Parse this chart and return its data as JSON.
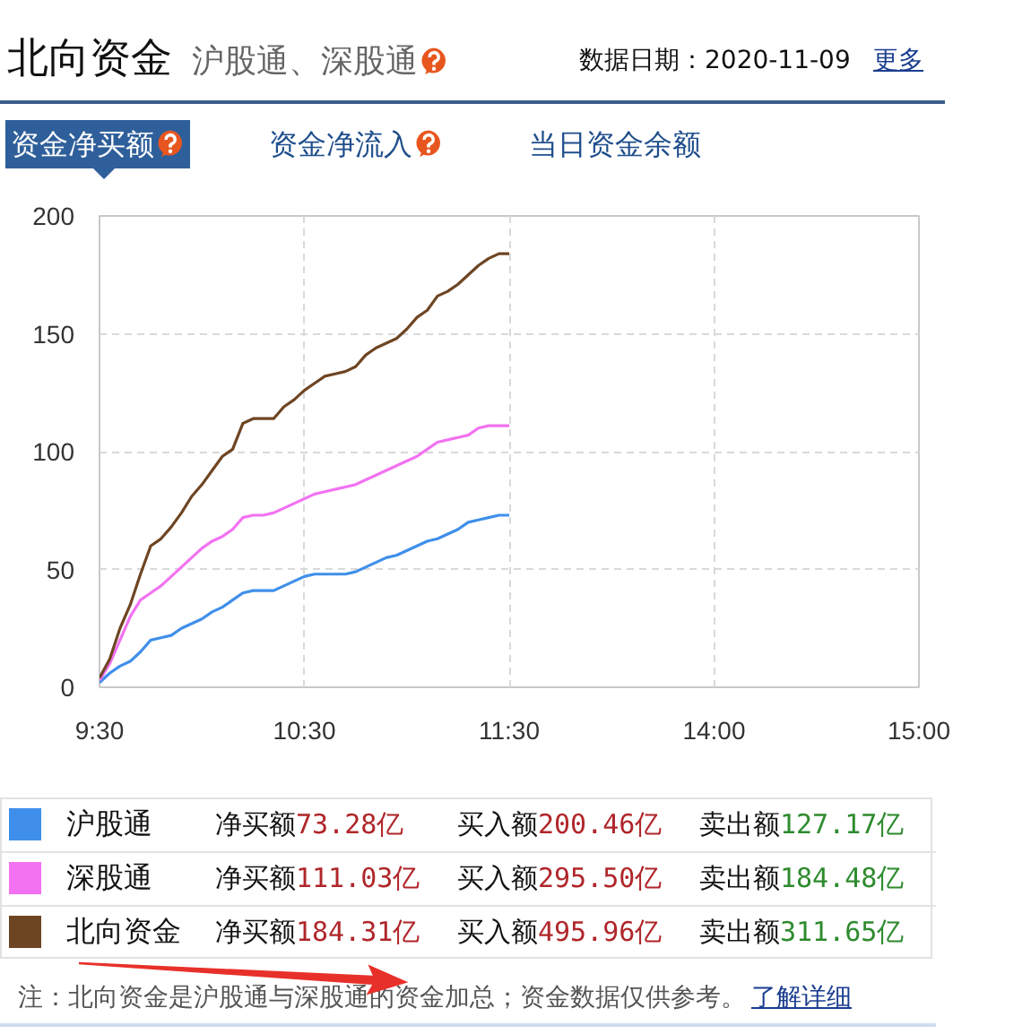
{
  "chart_data": {
    "type": "line",
    "title": "北向资金",
    "subtitle": "沪股通、深股通",
    "categories": [
      "9:30",
      null,
      null,
      null,
      null,
      null,
      null,
      null,
      null,
      null,
      null,
      null,
      null,
      null,
      null,
      null,
      null,
      null,
      null,
      null,
      "10:30",
      null,
      null,
      null,
      null,
      null,
      null,
      null,
      null,
      null,
      null,
      null,
      null,
      null,
      null,
      null,
      null,
      null,
      null,
      null,
      "11:30",
      null,
      null,
      null,
      null,
      null,
      null,
      null,
      null,
      null,
      null,
      null,
      null,
      null,
      null,
      null,
      null,
      null,
      null,
      null,
      "14:00",
      null,
      null,
      null,
      null,
      null,
      null,
      null,
      null,
      null,
      null,
      null,
      null,
      null,
      null,
      null,
      null,
      null,
      null,
      null,
      "15:00"
    ],
    "series": [
      {
        "name": "沪股通",
        "color": "#3f8fea",
        "values": [
          2,
          6,
          9,
          11,
          15,
          20,
          21,
          22,
          25,
          27,
          29,
          32,
          34,
          37,
          40,
          41,
          41,
          41,
          43,
          45,
          47,
          48,
          48,
          48,
          48,
          49,
          51,
          53,
          55,
          56,
          58,
          60,
          62,
          63,
          65,
          67,
          70,
          71,
          72,
          73,
          73,
          null,
          null,
          null,
          null,
          null,
          null,
          null,
          null,
          null,
          null,
          null,
          null,
          null,
          null,
          null,
          null,
          null,
          null,
          null,
          null,
          null,
          null,
          null,
          null,
          null,
          null,
          null,
          null,
          null,
          null,
          null,
          null,
          null,
          null,
          null,
          null,
          null,
          null,
          null,
          null
        ]
      },
      {
        "name": "深股通",
        "color": "#f272f2",
        "values": [
          3,
          10,
          20,
          30,
          37,
          40,
          43,
          47,
          51,
          55,
          59,
          62,
          64,
          67,
          72,
          73,
          73,
          74,
          76,
          78,
          80,
          82,
          83,
          84,
          85,
          86,
          88,
          90,
          92,
          94,
          96,
          98,
          101,
          104,
          105,
          106,
          107,
          110,
          111,
          111,
          111,
          null,
          null,
          null,
          null,
          null,
          null,
          null,
          null,
          null,
          null,
          null,
          null,
          null,
          null,
          null,
          null,
          null,
          null,
          null,
          null,
          null,
          null,
          null,
          null,
          null,
          null,
          null,
          null,
          null,
          null,
          null,
          null,
          null,
          null,
          null,
          null,
          null,
          null,
          null,
          null
        ]
      },
      {
        "name": "北向资金",
        "color": "#6e4523",
        "values": [
          4,
          12,
          25,
          35,
          48,
          60,
          63,
          68,
          74,
          81,
          86,
          92,
          98,
          101,
          112,
          114,
          114,
          114,
          119,
          122,
          126,
          129,
          132,
          133,
          134,
          136,
          141,
          144,
          146,
          148,
          152,
          157,
          160,
          166,
          168,
          171,
          175,
          179,
          182,
          184,
          184,
          null,
          null,
          null,
          null,
          null,
          null,
          null,
          null,
          null,
          null,
          null,
          null,
          null,
          null,
          null,
          null,
          null,
          null,
          null,
          null,
          null,
          null,
          null,
          null,
          null,
          null,
          null,
          null,
          null,
          null,
          null,
          null,
          null,
          null,
          null,
          null,
          null,
          null,
          null,
          null
        ]
      }
    ],
    "ylim": [
      0,
      200
    ],
    "yticks": [
      0,
      50,
      100,
      150,
      200
    ],
    "grid": true,
    "legend": "bottom",
    "annotations": [
      "数据日期：2020-11-09",
      "更多",
      "资金净买额",
      "资金净流入",
      "当日资金余额",
      "净买额73.28亿",
      "买入额200.46亿",
      "卖出额127.17亿",
      "净买额111.03亿",
      "买入额295.50亿",
      "卖出额184.48亿",
      "净买额184.31亿",
      "买入额495.96亿",
      "卖出额311.65亿",
      "注：北向资金是沪股通与深股通的资金加总；资金数据仅供参考。",
      "了解详细"
    ]
  }
}
